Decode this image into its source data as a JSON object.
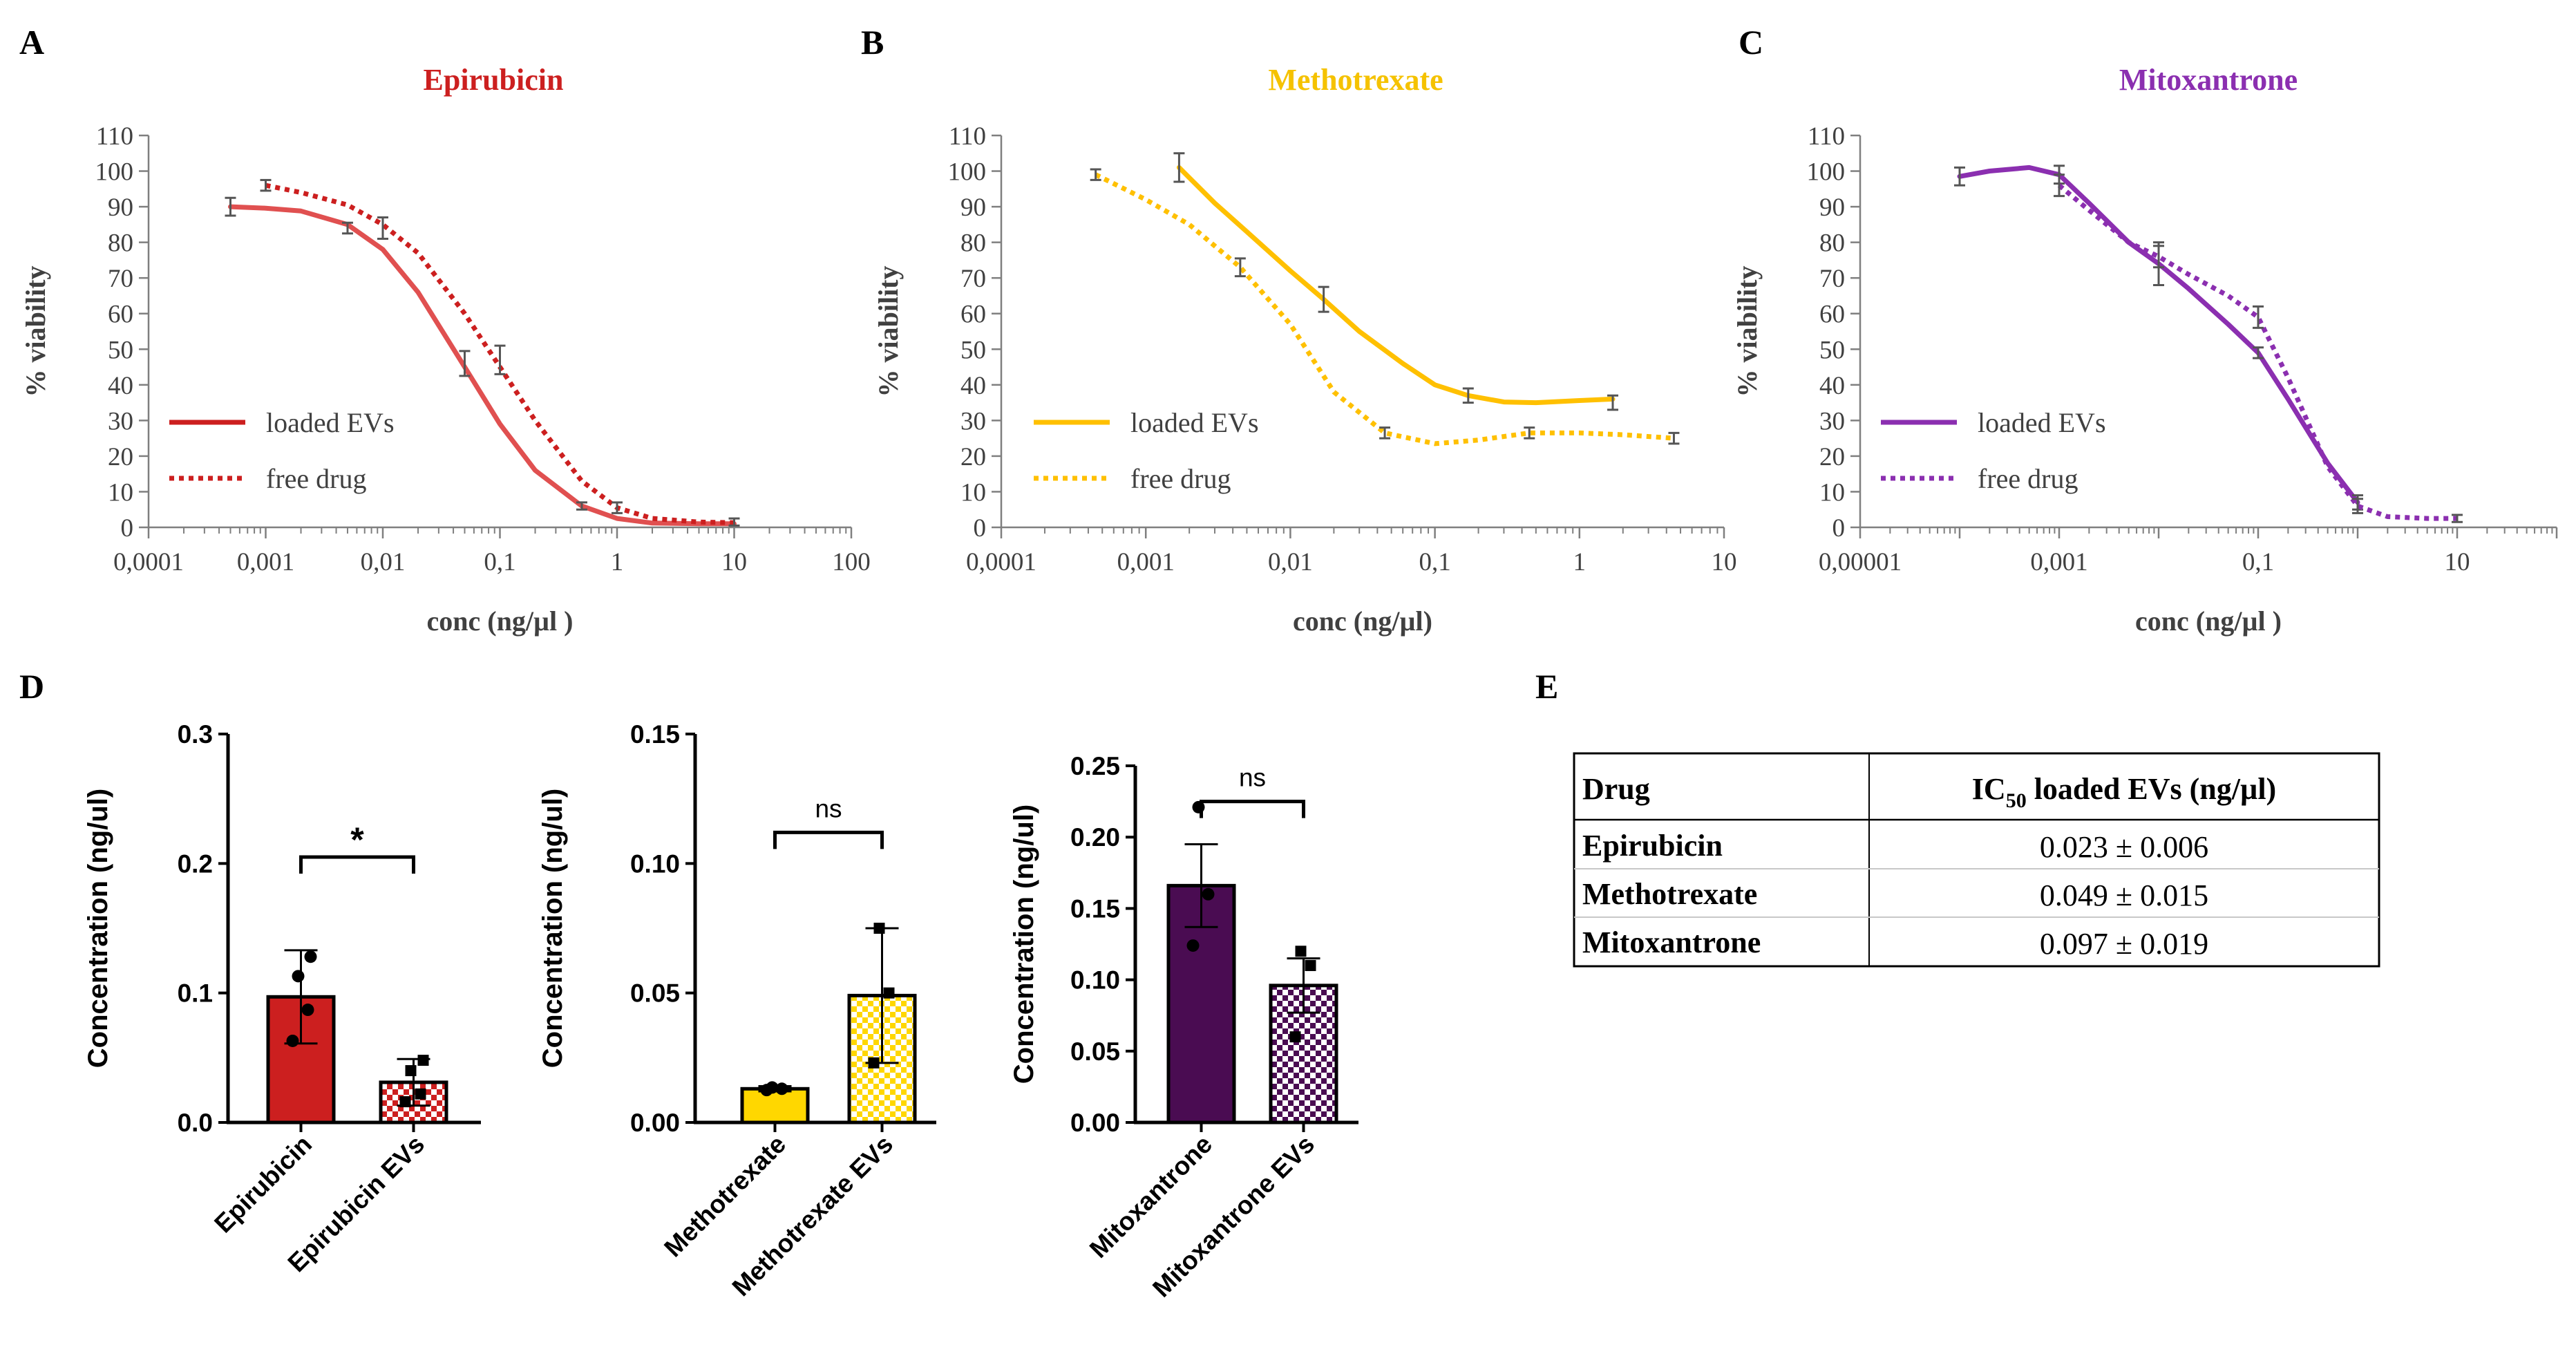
{
  "colors": {
    "epirubicin": "#cc1f1f",
    "epirubicin_curve": "#e05050",
    "methotrexate": "#ffc000",
    "methotrexate_title": "#f5c200",
    "mitoxantrone": "#8b2fb0",
    "mitoxantrone_bar": "#4a0c52",
    "axis": "#7f7f7f",
    "text": "#000000",
    "errorbar": "#555555"
  },
  "panels": {
    "A": {
      "letter": "A"
    },
    "B": {
      "letter": "B"
    },
    "C": {
      "letter": "C"
    },
    "D": {
      "letter": "D"
    },
    "E": {
      "letter": "E"
    }
  },
  "chart_data": [
    {
      "panel": "A",
      "type": "line",
      "title": "Epirubicin",
      "xlabel": "conc (ng/µl )",
      "ylabel": "% viability",
      "xscale": "log",
      "xlim": [
        0.0001,
        100
      ],
      "ylim": [
        0,
        110
      ],
      "xticks": [
        "0,0001",
        "0,001",
        "0,01",
        "0,1",
        "1",
        "10",
        "100"
      ],
      "yticks": [
        "0",
        "10",
        "20",
        "30",
        "40",
        "50",
        "60",
        "70",
        "80",
        "90",
        "100",
        "110"
      ],
      "legend": [
        "loaded EVs",
        "free drug"
      ],
      "series": [
        {
          "name": "loaded EVs",
          "style": "solid",
          "x": [
            0.0005,
            0.005,
            0.05,
            0.5
          ],
          "y": [
            90,
            84,
            46,
            6
          ],
          "err": [
            2.5,
            1.5,
            3.5,
            1
          ],
          "curve_x": [
            0.0005,
            0.001,
            0.002,
            0.005,
            0.01,
            0.02,
            0.05,
            0.1,
            0.2,
            0.5,
            1,
            2,
            5,
            10
          ],
          "curve_y": [
            90,
            89.6,
            88.8,
            85,
            78,
            66,
            45,
            29,
            16,
            6,
            2.5,
            1.2,
            1,
            1
          ]
        },
        {
          "name": "free drug",
          "style": "dotted",
          "x": [
            0.001,
            0.01,
            0.1,
            1,
            10
          ],
          "y": [
            96,
            84,
            47,
            5.5,
            1.5
          ],
          "err": [
            1.5,
            3,
            4,
            1.5,
            1
          ],
          "curve_x": [
            0.001,
            0.002,
            0.005,
            0.01,
            0.02,
            0.05,
            0.1,
            0.2,
            0.5,
            1,
            2,
            5,
            10
          ],
          "curve_y": [
            96,
            94,
            90.5,
            85,
            77,
            60,
            45,
            30,
            13,
            5.5,
            2.5,
            1.5,
            1.3
          ]
        }
      ]
    },
    {
      "panel": "B",
      "type": "line",
      "title": "Methotrexate",
      "xlabel": "conc (ng/µl)",
      "ylabel": "% viability",
      "xscale": "log",
      "xlim": [
        0.0001,
        10
      ],
      "ylim": [
        0,
        110
      ],
      "xticks": [
        "0,0001",
        "0,001",
        "0,01",
        "0,1",
        "1",
        "10"
      ],
      "yticks": [
        "0",
        "10",
        "20",
        "30",
        "40",
        "50",
        "60",
        "70",
        "80",
        "90",
        "100",
        "110"
      ],
      "legend": [
        "loaded EVs",
        "free drug"
      ],
      "series": [
        {
          "name": "loaded EVs",
          "style": "solid",
          "x": [
            0.0017,
            0.017,
            0.17,
            1.7
          ],
          "y": [
            101,
            64,
            37,
            35
          ],
          "err": [
            4,
            3.5,
            2,
            2
          ],
          "curve_x": [
            0.0017,
            0.003,
            0.005,
            0.01,
            0.017,
            0.03,
            0.06,
            0.1,
            0.17,
            0.3,
            0.5,
            1,
            1.7
          ],
          "curve_y": [
            101,
            91,
            83,
            72,
            64,
            55,
            46,
            40,
            37,
            35.2,
            35,
            35.6,
            36
          ]
        },
        {
          "name": "free drug",
          "style": "dotted",
          "x": [
            0.00045,
            0.0045,
            0.045,
            0.45,
            4.5
          ],
          "y": [
            99,
            73,
            26.5,
            26.5,
            25
          ],
          "err": [
            1.5,
            2.5,
            1.5,
            1.5,
            1.5
          ],
          "curve_x": [
            0.00045,
            0.001,
            0.002,
            0.0045,
            0.01,
            0.02,
            0.045,
            0.1,
            0.2,
            0.45,
            1,
            2,
            4.5
          ],
          "curve_y": [
            99,
            92,
            85,
            73,
            57,
            38,
            26.5,
            23.5,
            24.5,
            26.5,
            26.5,
            26,
            25
          ]
        }
      ]
    },
    {
      "panel": "C",
      "type": "line",
      "title": "Mitoxantrone",
      "xlabel": "conc (ng/µl )",
      "ylabel": "% viability",
      "xscale": "log",
      "xlim": [
        1e-05,
        100
      ],
      "ylim": [
        0,
        110
      ],
      "xticks": [
        "0,00001",
        "0,001",
        "0,1",
        "10"
      ],
      "yticks": [
        "0",
        "10",
        "20",
        "30",
        "40",
        "50",
        "60",
        "70",
        "80",
        "90",
        "100",
        "110"
      ],
      "legend": [
        "loaded EVs",
        "free drug"
      ],
      "series": [
        {
          "name": "loaded EVs",
          "style": "solid",
          "x": [
            0.0001,
            0.001,
            0.01,
            0.1,
            1
          ],
          "y": [
            98.5,
            99,
            74,
            49,
            7
          ],
          "err": [
            2.5,
            2.5,
            6,
            1.5,
            2
          ],
          "curve_x": [
            0.0001,
            0.0002,
            0.0005,
            0.001,
            0.002,
            0.005,
            0.01,
            0.02,
            0.05,
            0.1,
            0.2,
            0.5,
            1
          ],
          "curve_y": [
            98.5,
            100,
            101,
            99,
            91,
            80,
            74,
            67,
            57,
            49,
            36,
            18,
            7
          ]
        },
        {
          "name": "free drug",
          "style": "dotted",
          "x": [
            0.001,
            0.01,
            0.1,
            1,
            10
          ],
          "y": [
            96,
            76,
            59,
            6,
            2.5
          ],
          "err": [
            3,
            3,
            3,
            2,
            1
          ],
          "curve_x": [
            0.001,
            0.002,
            0.005,
            0.01,
            0.02,
            0.05,
            0.1,
            0.2,
            0.5,
            1,
            2,
            5,
            10
          ],
          "curve_y": [
            96,
            89,
            80,
            76,
            71,
            65,
            59,
            42,
            17,
            6,
            3,
            2.5,
            2.5
          ]
        }
      ]
    },
    {
      "panel": "D1",
      "type": "bar",
      "categories": [
        "Epirubicin",
        "Epirubicin EVs"
      ],
      "values": [
        0.097,
        0.031
      ],
      "errors": [
        0.036,
        0.018
      ],
      "points": [
        [
          0.063,
          0.087,
          0.113,
          0.128
        ],
        [
          0.016,
          0.022,
          0.04,
          0.048
        ]
      ],
      "ylabel": "Concentration (ng/ul)",
      "ylim": [
        0,
        0.3
      ],
      "yticks": [
        "0.0",
        "0.1",
        "0.2",
        "0.3"
      ],
      "significance": "*"
    },
    {
      "panel": "D2",
      "type": "bar",
      "categories": [
        "Methotrexate",
        "Methotrexate EVs"
      ],
      "values": [
        0.013,
        0.049
      ],
      "errors": [
        0.001,
        0.026
      ],
      "points": [
        [
          0.0125,
          0.013,
          0.0135
        ],
        [
          0.023,
          0.05,
          0.075
        ]
      ],
      "ylabel": "Concentration (ng/ul)",
      "ylim": [
        0,
        0.15
      ],
      "yticks": [
        "0.00",
        "0.05",
        "0.10",
        "0.15"
      ],
      "significance": "ns"
    },
    {
      "panel": "D3",
      "type": "bar",
      "categories": [
        "Mitoxantrone",
        "Mitoxantrone EVs"
      ],
      "values": [
        0.166,
        0.096
      ],
      "errors": [
        0.029,
        0.019
      ],
      "points": [
        [
          0.124,
          0.16,
          0.221
        ],
        [
          0.06,
          0.11,
          0.12
        ]
      ],
      "ylabel": "Concentration (ng/ul)",
      "ylim": [
        0,
        0.25
      ],
      "yticks": [
        "0.00",
        "0.05",
        "0.10",
        "0.15",
        "0.20",
        "0.25"
      ],
      "significance": "ns"
    },
    {
      "panel": "E",
      "type": "table",
      "columns": [
        "Drug",
        "IC",
        "50",
        " loaded EVs (ng/µl)"
      ],
      "rows": [
        [
          "Epirubicin",
          "0.023 ± 0.006"
        ],
        [
          "Methotrexate",
          "0.049 ± 0.015"
        ],
        [
          "Mitoxantrone",
          "0.097 ± 0.019"
        ]
      ]
    }
  ]
}
